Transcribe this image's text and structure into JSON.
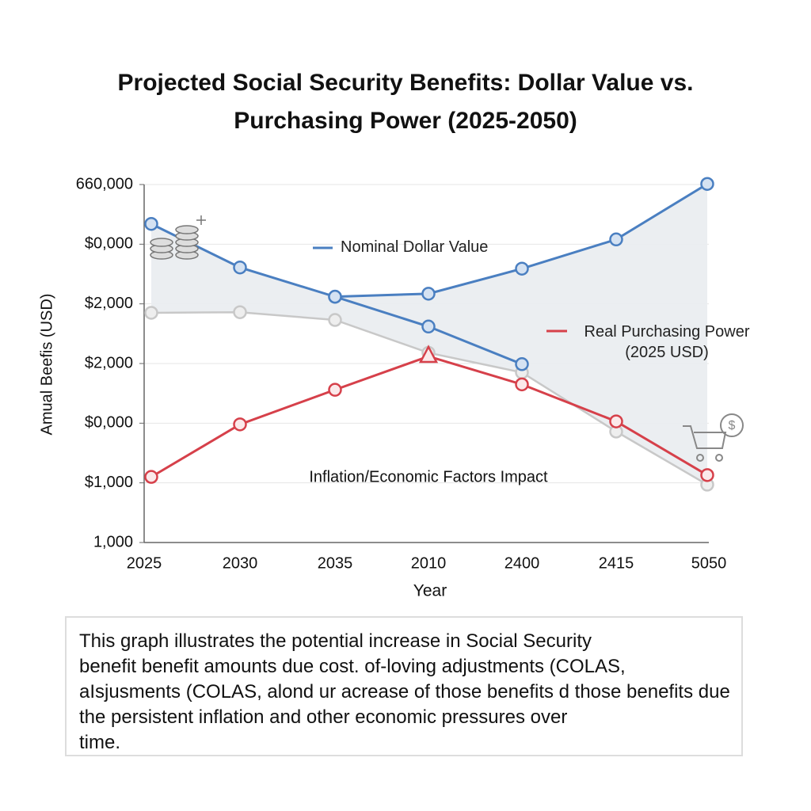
{
  "chart_data": {
    "type": "line",
    "title": [
      "Projected Social Security Benefits: Dollar Value vs.",
      "Purchasing Power (2025-2050)"
    ],
    "x_label": "Year",
    "y_label": "Amual Beefis (USD)",
    "annotation": "Inflation/Economic Factors Impact",
    "categories": [
      "2025",
      "2030",
      "2035",
      "2010",
      "2400",
      "2415",
      "5050"
    ],
    "series": [
      {
        "name": "Nominal Dollar Value",
        "color": "#4a7fc1",
        "values": [
          5.34,
          4.61,
          4.12,
          4.17,
          4.59,
          5.08,
          6.01
        ]
      },
      {
        "color": "#4a7fc1",
        "values": [
          null,
          null,
          4.12,
          3.62,
          2.99,
          null,
          null
        ]
      },
      {
        "name": "Real Purchasing Power (2025 USD)",
        "color": "#d6404a",
        "values": [
          1.1,
          1.98,
          2.56,
          3.12,
          2.65,
          2.03,
          1.13
        ]
      },
      {
        "color": "#c8c8c8",
        "values": [
          3.85,
          3.86,
          3.73,
          3.18,
          2.85,
          1.86,
          0.97
        ]
      }
    ],
    "ylim": [
      0,
      6
    ],
    "yticks": [
      {
        "value": 0,
        "label": "1,000"
      },
      {
        "value": 1,
        "label": "$1,000"
      },
      {
        "value": 2,
        "label": "$0,000"
      },
      {
        "value": 3,
        "label": "$2,000"
      },
      {
        "value": 4,
        "label": "$2,000"
      },
      {
        "value": 5,
        "label": "$0,000"
      },
      {
        "value": 6,
        "label": "660,000"
      }
    ],
    "grid": true
  },
  "caption": [
    "This graph illustrates the potential increase in Social Security",
    "benefit benefit amounts due cost. of-loving adjustments (COLAS,",
    "aIsjusments (COLAS, alond ur acrease of those benefits d those benefits due",
    "the persistent inflation and other economic   pressures  over",
    "time."
  ]
}
